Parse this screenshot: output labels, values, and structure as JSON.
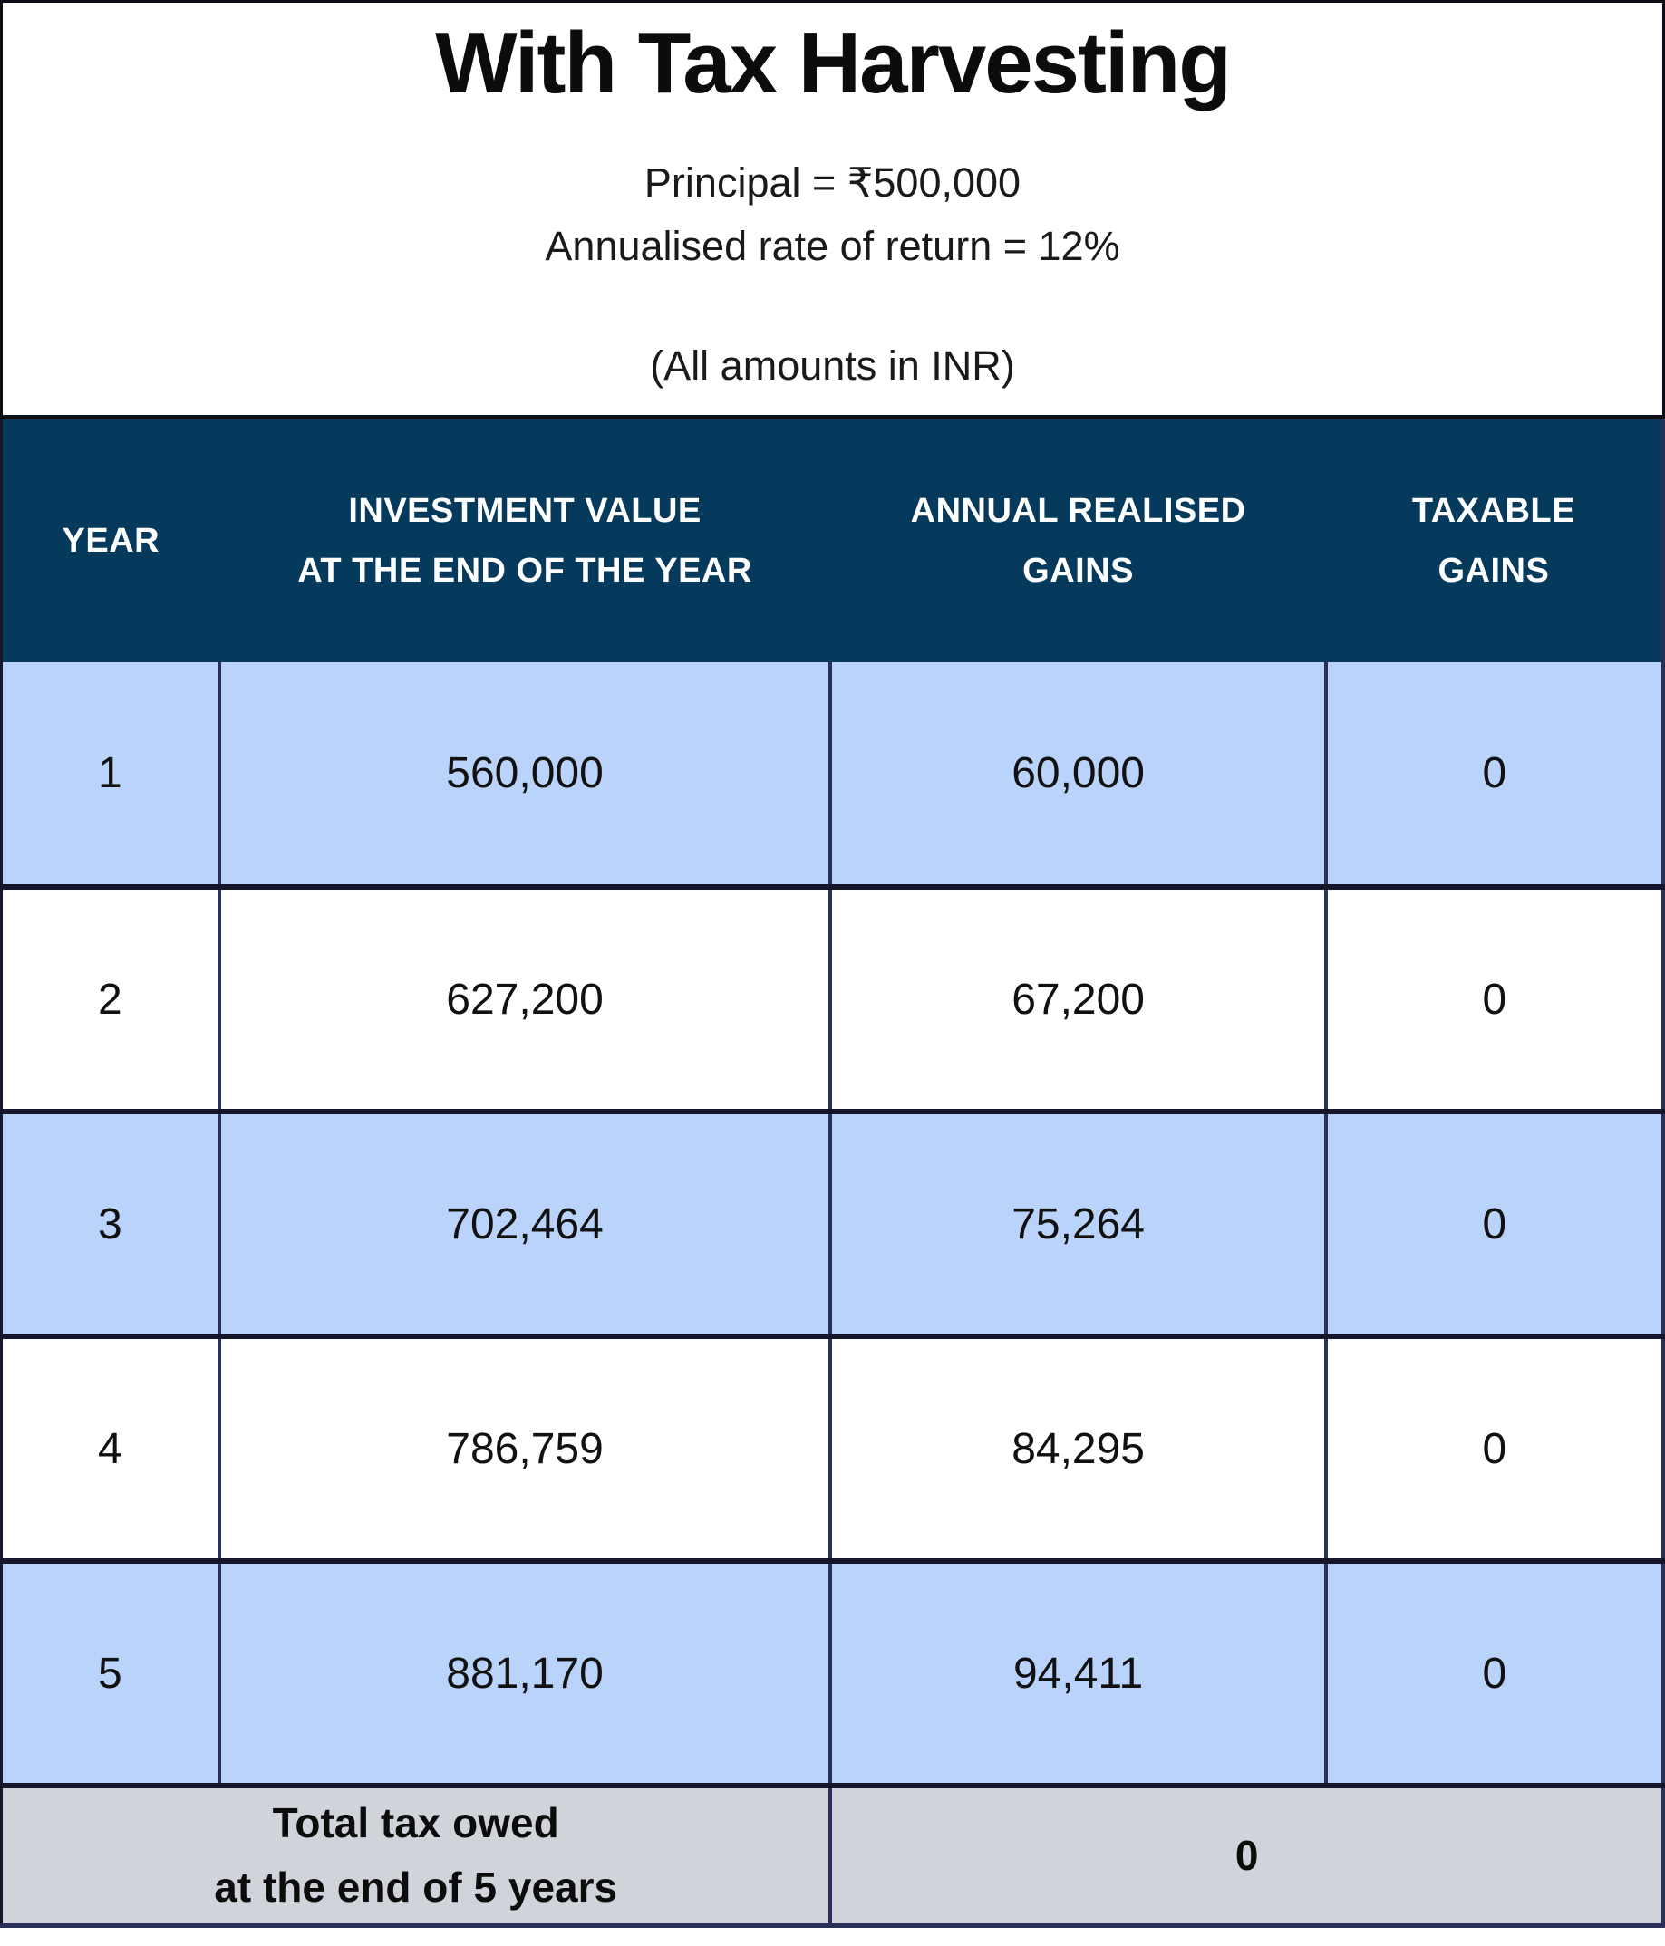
{
  "colors": {
    "header_bg": "#053a5c",
    "row_alt_bg": "#b9d3fa",
    "footer_bg": "#d0d4da",
    "grid_line": "#15152c",
    "header_text": "#ffffff"
  },
  "header_section": {
    "title": "With Tax Harvesting",
    "principal": "Principal = ₹500,000",
    "rate_of_return": "Annualised rate of return = 12%",
    "note": "(All amounts in INR)"
  },
  "table": {
    "headers": [
      {
        "line1": "YEAR",
        "line2": ""
      },
      {
        "line1": "INVESTMENT VALUE",
        "line2": "AT THE END OF THE YEAR"
      },
      {
        "line1": "ANNUAL REALISED",
        "line2": "GAINS"
      },
      {
        "line1": "TAXABLE",
        "line2": "GAINS"
      }
    ],
    "rows": [
      {
        "year": "1",
        "investment_value": "560,000",
        "annual_realised_gains": "60,000",
        "taxable_gains": "0"
      },
      {
        "year": "2",
        "investment_value": "627,200",
        "annual_realised_gains": "67,200",
        "taxable_gains": "0"
      },
      {
        "year": "3",
        "investment_value": "702,464",
        "annual_realised_gains": "75,264",
        "taxable_gains": "0"
      },
      {
        "year": "4",
        "investment_value": "786,759",
        "annual_realised_gains": "84,295",
        "taxable_gains": "0"
      },
      {
        "year": "5",
        "investment_value": "881,170",
        "annual_realised_gains": "94,411",
        "taxable_gains": "0"
      }
    ],
    "footer": {
      "label_line1": "Total tax owed",
      "label_line2": "at the end of 5 years",
      "value": "0"
    }
  },
  "chart_data": {
    "type": "table",
    "title": "With Tax Harvesting",
    "subtitle": [
      "Principal = ₹500,000",
      "Annualised rate of return = 12%",
      "(All amounts in INR)"
    ],
    "columns": [
      "YEAR",
      "INVESTMENT VALUE AT THE END OF THE YEAR",
      "ANNUAL REALISED GAINS",
      "TAXABLE GAINS"
    ],
    "rows": [
      [
        1,
        560000,
        60000,
        0
      ],
      [
        2,
        627200,
        67200,
        0
      ],
      [
        3,
        702464,
        75264,
        0
      ],
      [
        4,
        786759,
        84295,
        0
      ],
      [
        5,
        881170,
        94411,
        0
      ]
    ],
    "footer_row": {
      "label": "Total tax owed at the end of 5 years",
      "value": 0
    }
  }
}
